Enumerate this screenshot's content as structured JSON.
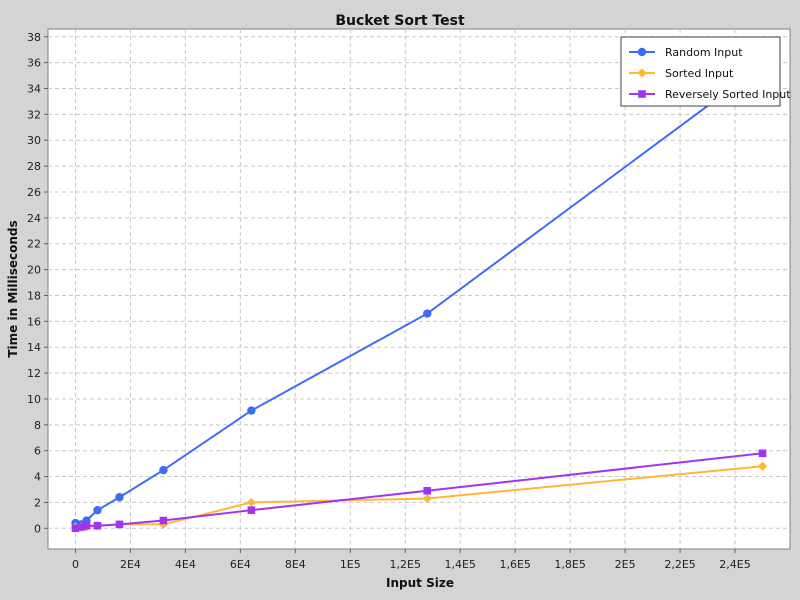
{
  "chart_data": {
    "type": "line",
    "title": "Bucket Sort Test",
    "xlabel": "Input Size",
    "ylabel": "Time in Milliseconds",
    "xlim": [
      -10000,
      260000
    ],
    "ylim": [
      -1.6,
      38.6
    ],
    "x_ticks": [
      {
        "value": 0,
        "label": "0"
      },
      {
        "value": 20000,
        "label": "2E4"
      },
      {
        "value": 40000,
        "label": "4E4"
      },
      {
        "value": 60000,
        "label": "6E4"
      },
      {
        "value": 80000,
        "label": "8E4"
      },
      {
        "value": 100000,
        "label": "1E5"
      },
      {
        "value": 120000,
        "label": "1,2E5"
      },
      {
        "value": 140000,
        "label": "1,4E5"
      },
      {
        "value": 160000,
        "label": "1,6E5"
      },
      {
        "value": 180000,
        "label": "1,8E5"
      },
      {
        "value": 200000,
        "label": "2E5"
      },
      {
        "value": 220000,
        "label": "2,2E5"
      },
      {
        "value": 240000,
        "label": "2,4E5"
      }
    ],
    "y_ticks": [
      {
        "value": 0,
        "label": "0"
      },
      {
        "value": 2,
        "label": "2"
      },
      {
        "value": 4,
        "label": "4"
      },
      {
        "value": 6,
        "label": "6"
      },
      {
        "value": 8,
        "label": "8"
      },
      {
        "value": 10,
        "label": "10"
      },
      {
        "value": 12,
        "label": "12"
      },
      {
        "value": 14,
        "label": "14"
      },
      {
        "value": 16,
        "label": "16"
      },
      {
        "value": 18,
        "label": "18"
      },
      {
        "value": 20,
        "label": "20"
      },
      {
        "value": 22,
        "label": "22"
      },
      {
        "value": 24,
        "label": "24"
      },
      {
        "value": 26,
        "label": "26"
      },
      {
        "value": 28,
        "label": "28"
      },
      {
        "value": 30,
        "label": "30"
      },
      {
        "value": 32,
        "label": "32"
      },
      {
        "value": 34,
        "label": "34"
      },
      {
        "value": 36,
        "label": "36"
      },
      {
        "value": 38,
        "label": "38"
      }
    ],
    "grid": true,
    "legend_position": "top-right",
    "series": [
      {
        "name": "Random Input",
        "color": "#3d6cf5",
        "marker": "circle",
        "points": [
          [
            0,
            0.4
          ],
          [
            2000,
            0.3
          ],
          [
            4000,
            0.6
          ],
          [
            8000,
            1.4
          ],
          [
            16000,
            2.4
          ],
          [
            32000,
            4.5
          ],
          [
            64000,
            9.1
          ],
          [
            128000,
            16.6
          ],
          [
            250000,
            35.8
          ]
        ]
      },
      {
        "name": "Sorted Input",
        "color": "#ffb833",
        "marker": "diamond",
        "points": [
          [
            0,
            0.1
          ],
          [
            2000,
            0.1
          ],
          [
            4000,
            0.1
          ],
          [
            8000,
            0.2
          ],
          [
            16000,
            0.3
          ],
          [
            32000,
            0.3
          ],
          [
            64000,
            2.0
          ],
          [
            128000,
            2.3
          ],
          [
            250000,
            4.8
          ]
        ]
      },
      {
        "name": "Reversely Sorted Input",
        "color": "#a135ef",
        "marker": "square",
        "points": [
          [
            0,
            0.0
          ],
          [
            2000,
            0.1
          ],
          [
            4000,
            0.2
          ],
          [
            8000,
            0.2
          ],
          [
            16000,
            0.3
          ],
          [
            32000,
            0.6
          ],
          [
            64000,
            1.4
          ],
          [
            128000,
            2.9
          ],
          [
            250000,
            5.8
          ]
        ]
      }
    ]
  }
}
